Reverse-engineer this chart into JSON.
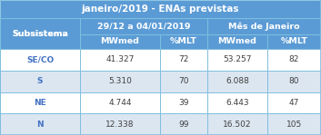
{
  "title": "janeiro/2019 - ENAs previstas",
  "col_group1": "29/12 a 04/01/2019",
  "col_group2": "Mês de Janeiro",
  "col_sub1": "MWmed",
  "col_sub2": "%MLT",
  "col_sub3": "MWmed",
  "col_sub4": "%MLT",
  "row_header": "Subsistema",
  "rows": [
    {
      "label": "SE/CO",
      "mwmed1": "41.327",
      "mlt1": "72",
      "mwmed2": "53.257",
      "mlt2": "82"
    },
    {
      "label": "S",
      "mwmed1": "5.310",
      "mlt1": "70",
      "mwmed2": "6.088",
      "mlt2": "80"
    },
    {
      "label": "NE",
      "mwmed1": "4.744",
      "mlt1": "39",
      "mwmed2": "6.443",
      "mlt2": "47"
    },
    {
      "label": "N",
      "mwmed1": "12.338",
      "mlt1": "99",
      "mwmed2": "16.502",
      "mlt2": "105"
    }
  ],
  "color_header_bg": "#5b9bd5",
  "color_header_text": "#ffffff",
  "color_row_odd": "#ffffff",
  "color_row_even": "#dce6f1",
  "color_label_text": "#4472c4",
  "color_data_text": "#404040",
  "color_border": "#7fbfdf",
  "title_fontsize": 7.5,
  "header_fontsize": 6.8,
  "data_fontsize": 6.5
}
